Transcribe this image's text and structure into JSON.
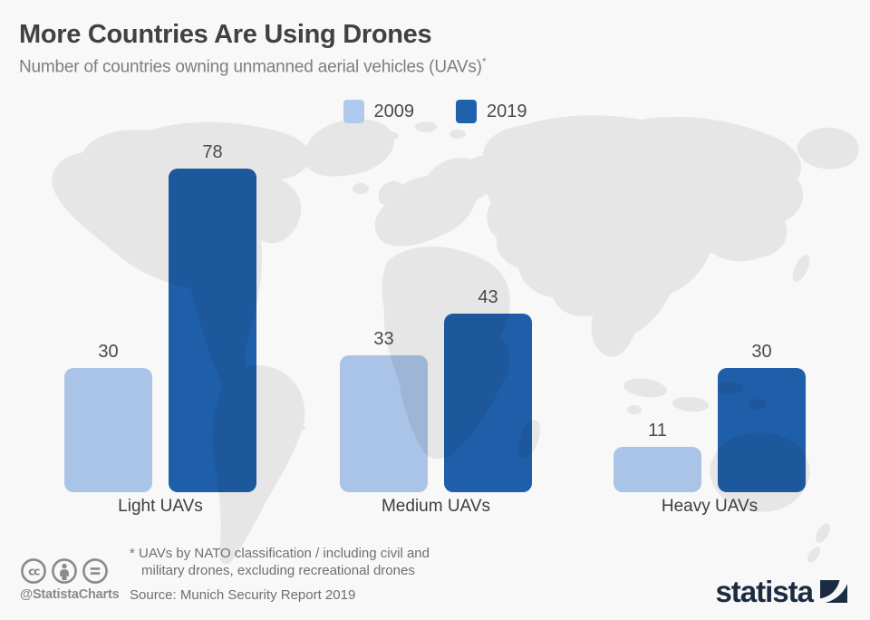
{
  "header": {
    "title": "More Countries Are Using Drones",
    "subtitle": "Number of countries owning unmanned aerial vehicles (UAVs)",
    "footnote_marker": "*"
  },
  "chart_data": {
    "type": "bar",
    "title": "More Countries Are Using Drones",
    "subtitle": "Number of countries owning unmanned aerial vehicles (UAVs)*",
    "categories": [
      "Light UAVs",
      "Medium UAVs",
      "Heavy UAVs"
    ],
    "series": [
      {
        "name": "2009",
        "color": "#AFCAEE",
        "values": [
          30,
          33,
          11
        ]
      },
      {
        "name": "2019",
        "color": "#2061AE",
        "values": [
          78,
          43,
          30
        ]
      }
    ],
    "ylim": [
      0,
      78
    ],
    "grid": false,
    "value_labels_shown": true,
    "legend_position": "top-center",
    "background": "world-map-silhouette"
  },
  "footer": {
    "license_icons": [
      "cc-icon",
      "attribution-icon",
      "no-derivatives-icon"
    ],
    "handle": "@StatistaCharts",
    "footnote_line1": "* UAVs by NATO classification / including civil and",
    "footnote_line2": "military drones, excluding recreational drones",
    "source": "Source: Munich Security Report 2019",
    "brand": "statista"
  },
  "colors": {
    "background": "#F8F8F8",
    "map": "#E6E6E6",
    "title_text": "#414141",
    "subtitle_text": "#7E7E7E",
    "label_text": "#4A4A4A",
    "footer_text": "#6F6F6F",
    "footer_gray": "#8A8A8A",
    "brand_navy": "#1B2B40"
  }
}
